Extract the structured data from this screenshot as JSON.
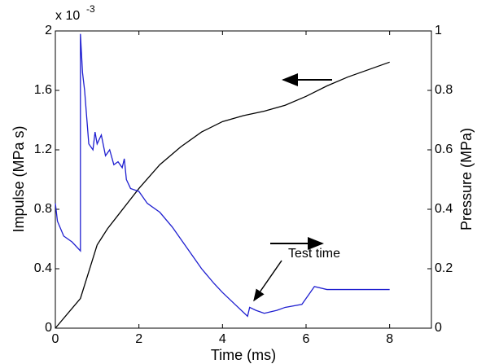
{
  "chart_data": {
    "type": "line",
    "xlabel": "Time (ms)",
    "ylabel": "Impulse (MPa s)",
    "y2label": "Pressure (MPa)",
    "y_multiplier": "x 10",
    "y_multiplier_exponent": "-3",
    "xlim": [
      0,
      9
    ],
    "xticks": [
      0,
      2,
      4,
      6,
      8
    ],
    "ylim": [
      0,
      2
    ],
    "yticks": [
      0,
      0.4,
      0.8,
      1.2,
      1.6,
      2
    ],
    "y2lim": [
      0,
      1
    ],
    "y2ticks": [
      0,
      0.2,
      0.4,
      0.6,
      0.8,
      1
    ],
    "annotations": [
      "Test time"
    ],
    "series": [
      {
        "color": "#000000",
        "axis": "y",
        "x": [
          0,
          0.6,
          0.8,
          1,
          1.25,
          1.5,
          1.75,
          2,
          2.5,
          3,
          3.5,
          4,
          4.5,
          5,
          5.5,
          6,
          6.5,
          7,
          7.5,
          8
        ],
        "values": [
          0,
          0.2,
          0.38,
          0.56,
          0.67,
          0.76,
          0.85,
          0.94,
          1.1,
          1.22,
          1.32,
          1.39,
          1.43,
          1.46,
          1.5,
          1.56,
          1.63,
          1.69,
          1.74,
          1.79
        ]
      },
      {
        "color": "#1f1fd0",
        "axis": "y2",
        "x": [
          0,
          0.05,
          0.2,
          0.4,
          0.6,
          0.6,
          0.65,
          0.7,
          0.8,
          0.9,
          0.95,
          1.0,
          1.1,
          1.2,
          1.3,
          1.4,
          1.5,
          1.6,
          1.65,
          1.7,
          1.8,
          2.0,
          2.2,
          2.5,
          2.8,
          3,
          3.3,
          3.5,
          3.8,
          4,
          4.3,
          4.6,
          4.65,
          4.8,
          5,
          5.3,
          5.5,
          5.9,
          6.0,
          6.2,
          6.5,
          7,
          7.5,
          8
        ],
        "values": [
          0.42,
          0.36,
          0.31,
          0.29,
          0.26,
          0.99,
          0.86,
          0.8,
          0.62,
          0.6,
          0.66,
          0.62,
          0.65,
          0.58,
          0.6,
          0.55,
          0.56,
          0.54,
          0.57,
          0.5,
          0.47,
          0.46,
          0.42,
          0.39,
          0.34,
          0.3,
          0.24,
          0.2,
          0.15,
          0.12,
          0.08,
          0.04,
          0.07,
          0.06,
          0.05,
          0.06,
          0.07,
          0.08,
          0.1,
          0.14,
          0.13,
          0.13,
          0.13,
          0.13
        ]
      }
    ]
  }
}
